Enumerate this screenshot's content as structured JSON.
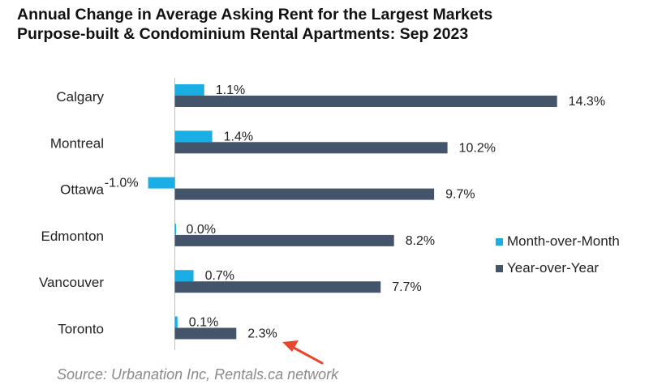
{
  "title_line1": "Annual Change in Average Asking Rent for the Largest Markets",
  "title_line2": "Purpose-built & Condominium Rental Apartments: Sep 2023",
  "source": "Source: Urbanation Inc, Rentals.ca network",
  "colors": {
    "mom": "#1aaee5",
    "yoy": "#44546a",
    "arrow": "#e8472b",
    "text": "#222222",
    "axis": "#bfbfbf"
  },
  "chart_data": {
    "type": "bar",
    "orientation": "horizontal",
    "categories": [
      "Calgary",
      "Montreal",
      "Ottawa",
      "Edmonton",
      "Vancouver",
      "Toronto"
    ],
    "series": [
      {
        "name": "Month-over-Month",
        "values": [
          1.1,
          1.4,
          -1.0,
          0.0,
          0.7,
          0.1
        ],
        "labels": [
          "1.1%",
          "1.4%",
          "-1.0%",
          "0.0%",
          "0.7%",
          "0.1%"
        ]
      },
      {
        "name": "Year-over-Year",
        "values": [
          14.3,
          10.2,
          9.7,
          8.2,
          7.7,
          2.3
        ],
        "labels": [
          "14.3%",
          "10.2%",
          "9.7%",
          "8.2%",
          "7.7%",
          "2.3%"
        ]
      }
    ],
    "xlim": [
      -1.05,
      14.3
    ],
    "legend": "right",
    "grid": false,
    "annotation": {
      "type": "arrow",
      "points_to": "Toronto Year-over-Year"
    }
  }
}
